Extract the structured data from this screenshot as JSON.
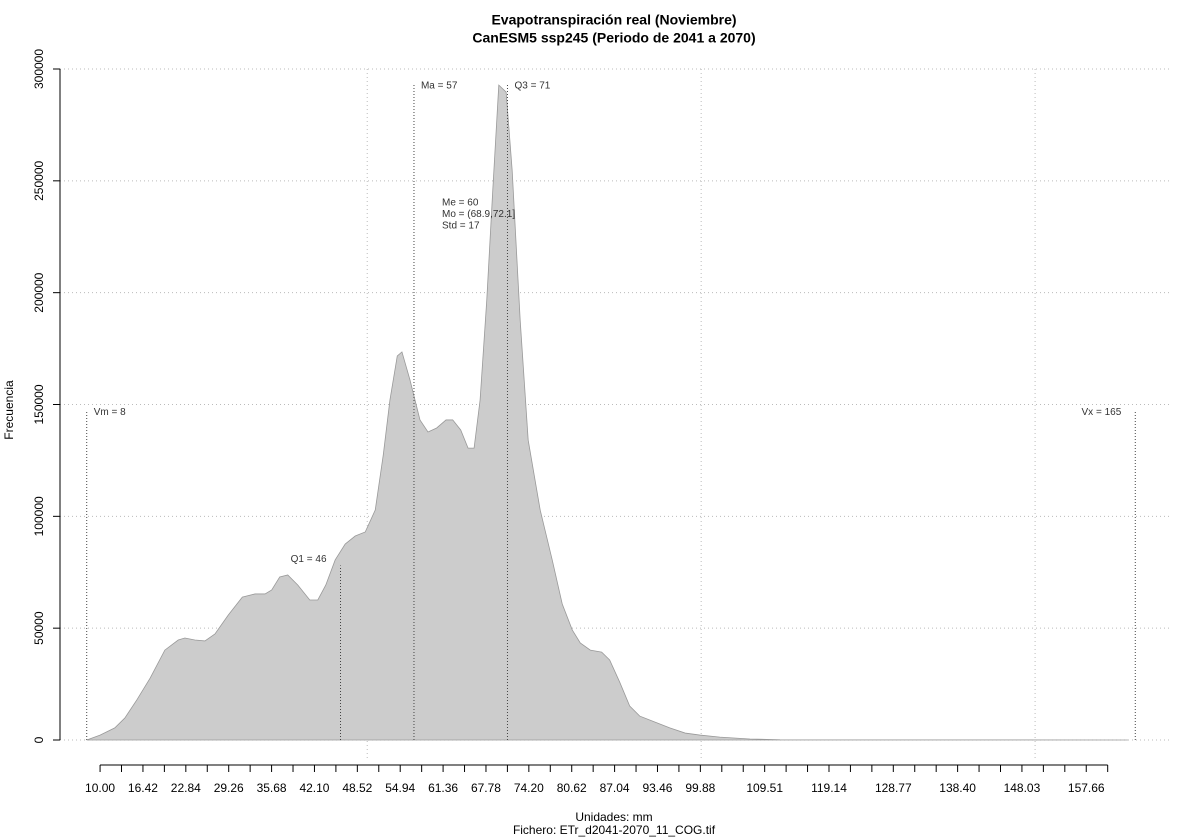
{
  "chart_data": {
    "type": "area",
    "title": "Evapotranspiración real (Noviembre)",
    "subtitle": "CanESM5 ssp245 (Periodo de 2041 a 2070)",
    "x_label": "Unidades: mm",
    "x_caption": "Fichero: ETr_d2041-2070_11_COG.tif",
    "y_label": "Frecuencia",
    "series": [
      {
        "name": "Frecuencia",
        "color": "#cccccc",
        "x": [
          8,
          10,
          12.2,
          13.7,
          15.5,
          17.5,
          19.7,
          21.7,
          22.7,
          24.2,
          25.7,
          27.2,
          29.2,
          31.3,
          33.2,
          34.7,
          35.7,
          36.9,
          38.1,
          39.6,
          41.4,
          42.6,
          43.8,
          45.2,
          46.7,
          48.2,
          49.7,
          51.2,
          52.4,
          53.4,
          54.5,
          55.2,
          56.4,
          57.9,
          59.1,
          60.4,
          61.8,
          62.8,
          64.0,
          65.1,
          66.0,
          66.9,
          67.9,
          68.8,
          69.7,
          70.8,
          71.7,
          72.9,
          74.1,
          75.9,
          77.7,
          79.2,
          80.7,
          81.9,
          83.4,
          85.1,
          86.3,
          87.8,
          89.3,
          90.8,
          93.1,
          95.3,
          97.6,
          99.8,
          102.8,
          107.3,
          111.8,
          122.3,
          144.7,
          163.9
        ],
        "values": [
          0,
          2200,
          5400,
          9800,
          17900,
          27700,
          40200,
          44700,
          45600,
          44700,
          44300,
          47400,
          55900,
          63900,
          65300,
          65300,
          67100,
          72900,
          73800,
          69300,
          62600,
          62600,
          69300,
          80500,
          87600,
          91200,
          93000,
          102800,
          127400,
          152000,
          171700,
          173500,
          161000,
          143100,
          137700,
          139500,
          143100,
          143100,
          138600,
          130500,
          130500,
          152000,
          196700,
          245900,
          292800,
          289700,
          254800,
          187800,
          134100,
          102800,
          80500,
          60800,
          49200,
          43400,
          40200,
          39300,
          35800,
          25900,
          15200,
          10700,
          8000,
          5400,
          3100,
          2200,
          1300,
          450,
          100,
          50,
          20,
          0
        ]
      }
    ],
    "xlim": [
      4,
      170.2
    ],
    "ylim": [
      0,
      300000
    ],
    "yticks": [
      0,
      50000,
      100000,
      150000,
      200000,
      250000,
      300000
    ],
    "xticks": [
      {
        "value": 10,
        "label": "10.00"
      },
      {
        "value": 16.42,
        "label": "16.42"
      },
      {
        "value": 22.84,
        "label": "22.84"
      },
      {
        "value": 29.26,
        "label": "29.26"
      },
      {
        "value": 35.68,
        "label": "35.68"
      },
      {
        "value": 42.1,
        "label": "42.10"
      },
      {
        "value": 48.52,
        "label": "48.52"
      },
      {
        "value": 54.94,
        "label": "54.94"
      },
      {
        "value": 61.36,
        "label": "61.36"
      },
      {
        "value": 67.78,
        "label": "67.78"
      },
      {
        "value": 74.2,
        "label": "74.20"
      },
      {
        "value": 80.62,
        "label": "80.62"
      },
      {
        "value": 87.04,
        "label": "87.04"
      },
      {
        "value": 93.46,
        "label": "93.46"
      },
      {
        "value": 99.88,
        "label": "99.88"
      },
      {
        "value": 109.51,
        "label": "109.51"
      },
      {
        "value": 119.14,
        "label": "119.14"
      },
      {
        "value": 128.77,
        "label": "128.77"
      },
      {
        "value": 138.4,
        "label": "138.40"
      },
      {
        "value": 148.03,
        "label": "148.03"
      },
      {
        "value": 157.66,
        "label": "157.66"
      }
    ],
    "xticks_minor": [
      13.21,
      19.63,
      26.05,
      32.47,
      38.89,
      45.31,
      51.73,
      58.15,
      64.57,
      70.99,
      77.41,
      83.83,
      90.25,
      96.67,
      103.09,
      106.3,
      112.72,
      115.93,
      122.35,
      125.56,
      131.98,
      135.19,
      141.61,
      144.82,
      151.24,
      154.45,
      160.87
    ],
    "xgrid": [
      50,
      100,
      150
    ],
    "grid": true,
    "vlines": [
      {
        "label": "Vm = 8",
        "x": 8,
        "y": 147000,
        "side": "right"
      },
      {
        "label": "Q1 = 46",
        "x": 46,
        "y": 78000,
        "side": "left"
      },
      {
        "label": "Ma = 57",
        "x": 57,
        "y": 293000,
        "side": "right"
      },
      {
        "label": "Q3 = 71",
        "x": 71,
        "y": 293000,
        "side": "right"
      },
      {
        "label": "Vx = 165",
        "x": 165,
        "y": 147000,
        "side": "left"
      }
    ],
    "stats": [
      "Me = 60",
      "Mo = (68.9,72.1]",
      "Std = 17"
    ]
  }
}
